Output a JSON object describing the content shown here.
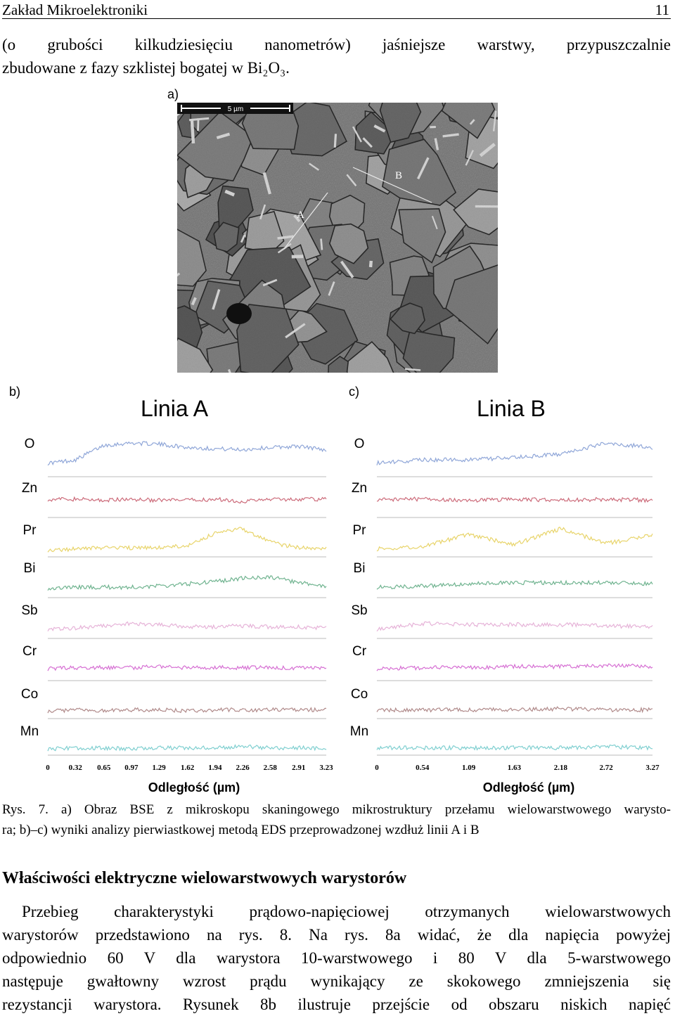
{
  "header": {
    "title": "Zakład Mikroelektroniki",
    "page_number": "11"
  },
  "intro_lines": [
    "(o grubości kilkudziesięciu nanometrów) jaśniejsze warstwy, przypuszczalnie",
    "zbudowane z fazy szklistej bogatej w Bi₂O₃."
  ],
  "figure": {
    "panel_a_label": "a)",
    "scale_bar_label": "5 µm",
    "line_labels": {
      "a": "A",
      "b": "B"
    },
    "panels": [
      {
        "label": "b)",
        "title": "Linia A",
        "elements": [
          "O",
          "Zn",
          "Pr",
          "Bi",
          "Sb",
          "Cr",
          "Co",
          "Mn"
        ],
        "ticks": [
          "0",
          "0.32",
          "0.65",
          "0.97",
          "1.29",
          "1.62",
          "1.94",
          "2.26",
          "2.58",
          "2.91",
          "3.23"
        ],
        "xlabel": "Odległość (µm)"
      },
      {
        "label": "c)",
        "title": "Linia B",
        "elements": [
          "O",
          "Zn",
          "Pr",
          "Bi",
          "Sb",
          "Cr",
          "Co",
          "Mn"
        ],
        "ticks": [
          "0",
          "0.54",
          "1.09",
          "1.63",
          "2.18",
          "2.72",
          "3.27"
        ],
        "xlabel": "Odległość (µm)"
      }
    ]
  },
  "chart_data": [
    {
      "type": "line",
      "title": "Linia A",
      "xlabel": "Odległość (µm)",
      "xlim": [
        0,
        3.23
      ],
      "colors": {
        "O": "#8fa6d8",
        "Zn": "#cc6b7a",
        "Pr": "#e8d46a",
        "Bi": "#6fb38f",
        "Sb": "#e6b3d8",
        "Cr": "#d66fd3",
        "Co": "#b08a8a",
        "Mn": "#7fcfd0"
      },
      "series": [
        {
          "name": "O",
          "x": [
            0,
            0.32,
            0.65,
            0.97,
            1.29,
            1.62,
            1.94,
            2.26,
            2.58,
            2.91,
            3.23
          ],
          "y": [
            0.1,
            0.25,
            0.9,
            1.0,
            0.95,
            0.8,
            0.75,
            0.7,
            0.8,
            0.85,
            0.7
          ]
        },
        {
          "name": "Zn",
          "x": [
            0,
            0.32,
            0.65,
            0.97,
            1.29,
            1.62,
            1.94,
            2.26,
            2.58,
            2.91,
            3.23
          ],
          "y": [
            0.5,
            0.5,
            0.45,
            0.5,
            0.45,
            0.45,
            0.5,
            0.4,
            0.5,
            0.5,
            0.5
          ]
        },
        {
          "name": "Pr",
          "x": [
            0,
            0.32,
            0.65,
            0.97,
            1.29,
            1.62,
            1.94,
            2.26,
            2.58,
            2.91,
            3.23
          ],
          "y": [
            0.05,
            0.1,
            0.15,
            0.15,
            0.15,
            0.25,
            0.8,
            1.0,
            0.4,
            0.15,
            0.1
          ]
        },
        {
          "name": "Bi",
          "x": [
            0,
            0.32,
            0.65,
            0.97,
            1.29,
            1.62,
            1.94,
            2.26,
            2.58,
            2.91,
            3.23
          ],
          "y": [
            0.1,
            0.15,
            0.15,
            0.15,
            0.2,
            0.3,
            0.4,
            0.55,
            0.6,
            0.35,
            0.2
          ]
        },
        {
          "name": "Sb",
          "x": [
            0,
            0.32,
            0.65,
            0.97,
            1.29,
            1.62,
            1.94,
            2.26,
            2.58,
            2.91,
            3.23
          ],
          "y": [
            0.1,
            0.15,
            0.25,
            0.35,
            0.3,
            0.2,
            0.2,
            0.25,
            0.2,
            0.2,
            0.15
          ]
        },
        {
          "name": "Cr",
          "x": [
            0,
            0.32,
            0.65,
            0.97,
            1.29,
            1.62,
            1.94,
            2.26,
            2.58,
            2.91,
            3.23
          ],
          "y": [
            0.15,
            0.2,
            0.2,
            0.2,
            0.25,
            0.2,
            0.2,
            0.2,
            0.2,
            0.2,
            0.2
          ]
        },
        {
          "name": "Co",
          "x": [
            0,
            0.32,
            0.65,
            0.97,
            1.29,
            1.62,
            1.94,
            2.26,
            2.58,
            2.91,
            3.23
          ],
          "y": [
            0.15,
            0.2,
            0.15,
            0.2,
            0.2,
            0.15,
            0.2,
            0.2,
            0.2,
            0.2,
            0.2
          ]
        },
        {
          "name": "Mn",
          "x": [
            0,
            0.32,
            0.65,
            0.97,
            1.29,
            1.62,
            1.94,
            2.26,
            2.58,
            2.91,
            3.23
          ],
          "y": [
            0.15,
            0.2,
            0.2,
            0.15,
            0.2,
            0.2,
            0.2,
            0.25,
            0.2,
            0.2,
            0.15
          ]
        }
      ]
    },
    {
      "type": "line",
      "title": "Linia B",
      "xlabel": "Odległość (µm)",
      "xlim": [
        0,
        3.27
      ],
      "colors": {
        "O": "#8fa6d8",
        "Zn": "#cc6b7a",
        "Pr": "#e8d46a",
        "Bi": "#6fb38f",
        "Sb": "#e6b3d8",
        "Cr": "#d66fd3",
        "Co": "#b08a8a",
        "Mn": "#7fcfd0"
      },
      "series": [
        {
          "name": "O",
          "x": [
            0,
            0.54,
            1.09,
            1.63,
            2.18,
            2.72,
            3.27
          ],
          "y": [
            0.1,
            0.25,
            0.25,
            0.35,
            0.5,
            1.0,
            0.8
          ]
        },
        {
          "name": "Zn",
          "x": [
            0,
            0.54,
            1.09,
            1.63,
            2.18,
            2.72,
            3.27
          ],
          "y": [
            0.5,
            0.5,
            0.45,
            0.5,
            0.45,
            0.5,
            0.45
          ]
        },
        {
          "name": "Pr",
          "x": [
            0,
            0.54,
            1.09,
            1.63,
            2.18,
            2.72,
            3.27
          ],
          "y": [
            0.1,
            0.2,
            0.75,
            0.3,
            1.0,
            0.35,
            0.7
          ]
        },
        {
          "name": "Bi",
          "x": [
            0,
            0.54,
            1.09,
            1.63,
            2.18,
            2.72,
            3.27
          ],
          "y": [
            0.15,
            0.2,
            0.3,
            0.35,
            0.35,
            0.35,
            0.3
          ]
        },
        {
          "name": "Sb",
          "x": [
            0,
            0.54,
            1.09,
            1.63,
            2.18,
            2.72,
            3.27
          ],
          "y": [
            0.1,
            0.35,
            0.3,
            0.3,
            0.3,
            0.25,
            0.2
          ]
        },
        {
          "name": "Cr",
          "x": [
            0,
            0.54,
            1.09,
            1.63,
            2.18,
            2.72,
            3.27
          ],
          "y": [
            0.15,
            0.2,
            0.2,
            0.25,
            0.25,
            0.3,
            0.25
          ]
        },
        {
          "name": "Co",
          "x": [
            0,
            0.54,
            1.09,
            1.63,
            2.18,
            2.72,
            3.27
          ],
          "y": [
            0.2,
            0.2,
            0.2,
            0.2,
            0.25,
            0.2,
            0.2
          ]
        },
        {
          "name": "Mn",
          "x": [
            0,
            0.54,
            1.09,
            1.63,
            2.18,
            2.72,
            3.27
          ],
          "y": [
            0.2,
            0.2,
            0.2,
            0.2,
            0.2,
            0.25,
            0.2
          ]
        }
      ]
    }
  ],
  "caption_lines": [
    "Rys. 7. a) Obraz BSE z mikroskopu skaningowego mikrostruktury przełamu wielowarstwowego warysto-",
    "ra; b)–c) wyniki analizy pierwiastkowej metodą EDS przeprowadzonej wzdłuż linii A i B"
  ],
  "section_heading": "Właściwości elektryczne wielowarstwowych warystorów",
  "body_lines": [
    "Przebieg charakterystyki prądowo-napięciowej otrzymanych wielowarstwowych",
    "warystorów przedstawiono na rys. 8. Na rys. 8a widać, że dla napięcia powyżej",
    "odpowiednio 60 V dla warystora 10-warstwowego i 80 V dla 5-warstwowego",
    "następuje gwałtowny wzrost prądu wynikający ze skokowego zmniejszenia się",
    "rezystancji warystora. Rysunek 8b ilustruje przejście od obszaru niskich napięć"
  ]
}
